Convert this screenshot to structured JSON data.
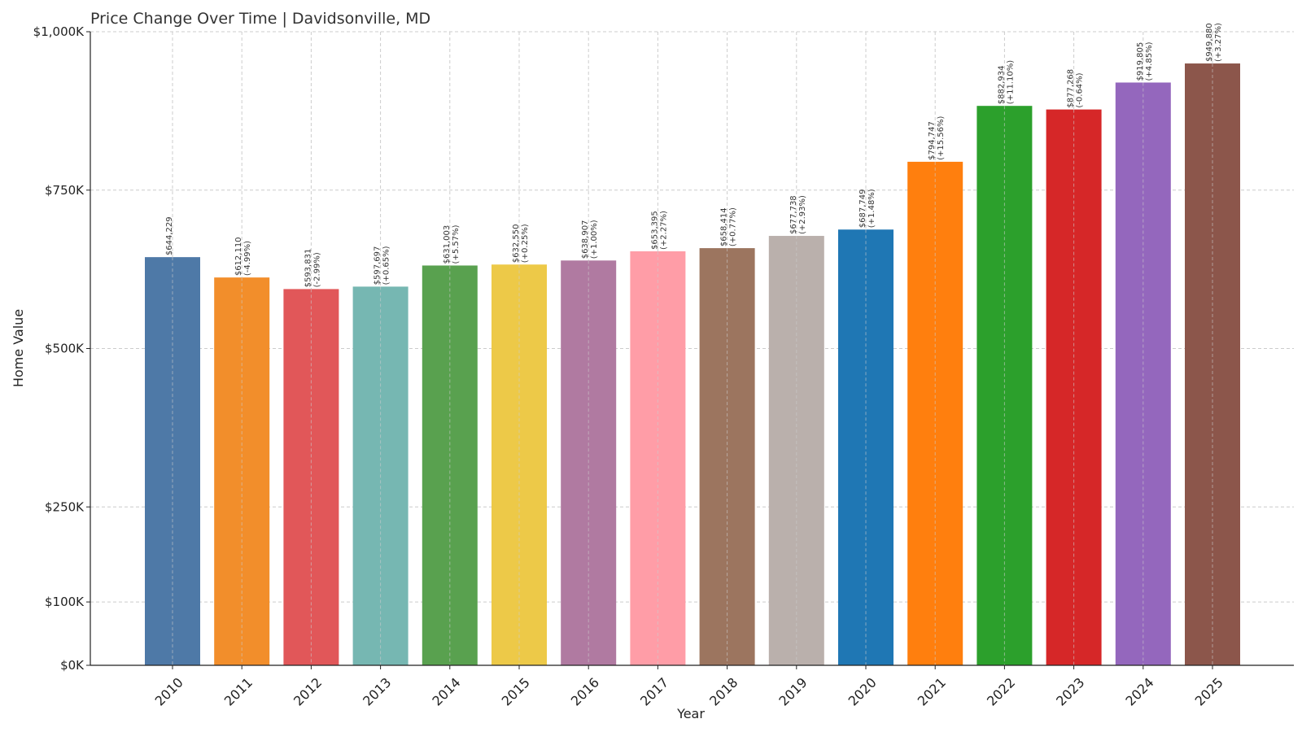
{
  "chart_data": {
    "type": "bar",
    "title": "Price Change Over Time | Davidsonville, MD",
    "xlabel": "Year",
    "ylabel": "Home Value",
    "ylim": [
      0,
      1000000
    ],
    "grid": true,
    "yticks": [
      {
        "value": 0,
        "label": "$0K"
      },
      {
        "value": 100000,
        "label": "$100K"
      },
      {
        "value": 250000,
        "label": "$250K"
      },
      {
        "value": 500000,
        "label": "$500K"
      },
      {
        "value": 750000,
        "label": "$750K"
      },
      {
        "value": 1000000,
        "label": "$1,000K"
      }
    ],
    "categories": [
      "2010",
      "2011",
      "2012",
      "2013",
      "2014",
      "2015",
      "2016",
      "2017",
      "2018",
      "2019",
      "2020",
      "2021",
      "2022",
      "2023",
      "2024",
      "2025"
    ],
    "values": [
      644229,
      612110,
      593831,
      597697,
      631003,
      632550,
      638907,
      653395,
      658414,
      677738,
      687749,
      794747,
      882934,
      877268,
      919805,
      949880
    ],
    "value_labels": [
      "$644,229",
      "$612,110",
      "$593,831",
      "$597,697",
      "$631,003",
      "$632,550",
      "$638,907",
      "$653,395",
      "$658,414",
      "$677,738",
      "$687,749",
      "$794,747",
      "$882,934",
      "$877,268",
      "$919,805",
      "$949,880"
    ],
    "change_labels": [
      "",
      "(-4.99%)",
      "(-2.99%)",
      "(+0.65%)",
      "(+5.57%)",
      "(+0.25%)",
      "(+1.00%)",
      "(+2.27%)",
      "(+0.77%)",
      "(+2.93%)",
      "(+1.48%)",
      "(+15.56%)",
      "(+11.10%)",
      "(-0.64%)",
      "(+4.85%)",
      "(+3.27%)"
    ],
    "colors": [
      "#4e79a7",
      "#f28e2b",
      "#e15759",
      "#76b7b2",
      "#59a14f",
      "#edc948",
      "#b07aa1",
      "#ff9da7",
      "#9c755f",
      "#bab0ac",
      "#1f77b4",
      "#ff7f0e",
      "#2ca02c",
      "#d62728",
      "#9467bd",
      "#8c564b"
    ]
  }
}
